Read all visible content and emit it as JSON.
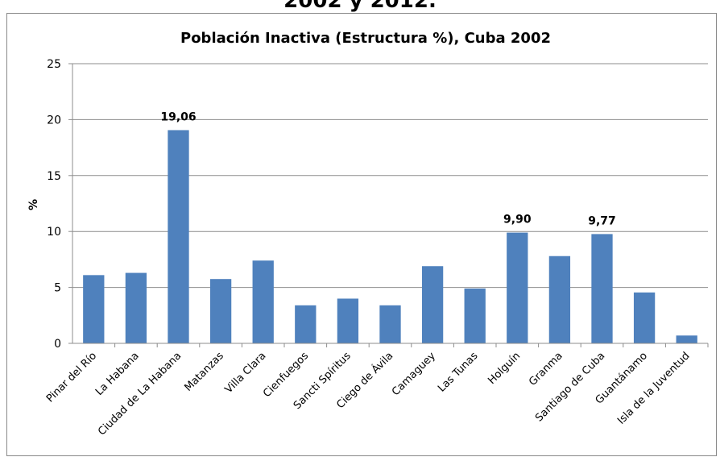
{
  "header": {
    "text": "2002 y 2012."
  },
  "chart_data": {
    "type": "bar",
    "title": "Población Inactiva (Estructura %), Cuba 2002",
    "xlabel": "",
    "ylabel": "%",
    "ylim": [
      0,
      25
    ],
    "yticks": [
      0,
      5,
      10,
      15,
      20,
      25
    ],
    "grid": true,
    "legend": "none",
    "bar_color": "#4F81BD",
    "categories": [
      "Pinar del Río",
      "La Habana",
      "Ciudad de La Habana",
      "Matanzas",
      "Villa Clara",
      "Cienfuegos",
      "Sancti Spíritus",
      "Ciego de Ávila",
      "Camaguey",
      "Las Tunas",
      "Holguín",
      "Granma",
      "Santiago de Cuba",
      "Guantánamo",
      "Isla de la Juventud"
    ],
    "values": [
      6.1,
      6.3,
      19.06,
      5.75,
      7.4,
      3.4,
      4.0,
      3.4,
      6.9,
      4.9,
      9.9,
      7.8,
      9.77,
      4.55,
      0.7
    ],
    "data_labels": [
      {
        "index": 2,
        "text": "19,06"
      },
      {
        "index": 10,
        "text": "9,90"
      },
      {
        "index": 12,
        "text": "9,77"
      }
    ]
  }
}
